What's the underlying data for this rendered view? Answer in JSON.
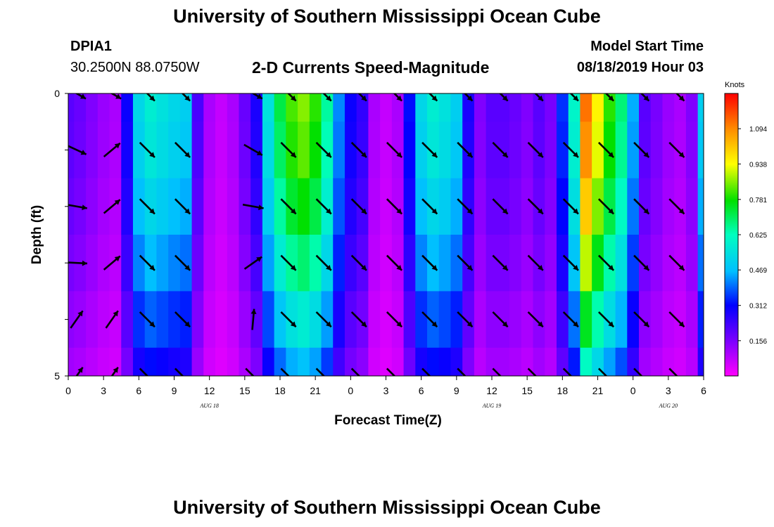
{
  "header": {
    "title_top": "University of Southern Mississippi Ocean Cube",
    "title_bottom": "University of Southern Mississippi Ocean Cube",
    "station": "DPIA1",
    "coords": "30.2500N 88.0750W",
    "subtitle": "2-D Currents Speed-Magnitude",
    "start_label": "Model Start Time",
    "start_value": "08/18/2019 Hour 03"
  },
  "chart_data": {
    "type": "heatmap",
    "title": "2-D Currents Speed-Magnitude",
    "xlabel": "Forecast Time(Z)",
    "ylabel": "Depth (ft)",
    "xlim": [
      0,
      54
    ],
    "ylim": [
      0,
      5
    ],
    "x_tick_labels": [
      "0",
      "3",
      "6",
      "9",
      "12",
      "15",
      "18",
      "21",
      "0",
      "3",
      "6",
      "9",
      "12",
      "15",
      "18",
      "21",
      "0",
      "3",
      "6"
    ],
    "y_tick_labels": [
      "0",
      "5"
    ],
    "day_labels": [
      {
        "text": "AUG  18",
        "hour": 12
      },
      {
        "text": "AUG  19",
        "hour": 36
      },
      {
        "text": "AUG  20",
        "hour": 51
      }
    ],
    "colorbar": {
      "label": "Knots",
      "min": 0,
      "max": 1.25,
      "ticks": [
        "0.156",
        "0.312",
        "0.469",
        "0.625",
        "0.781",
        "0.938",
        "1.094"
      ]
    },
    "depth_layers": [
      0,
      1,
      2,
      3,
      4,
      5
    ],
    "speed_by_hour": [
      0.2,
      0.18,
      0.15,
      0.12,
      0.1,
      0.3,
      0.52,
      0.58,
      0.55,
      0.52,
      0.5,
      0.22,
      0.1,
      0.07,
      0.1,
      0.18,
      0.28,
      0.55,
      0.72,
      0.82,
      0.86,
      0.8,
      0.65,
      0.42,
      0.3,
      0.25,
      0.1,
      0.07,
      0.1,
      0.32,
      0.52,
      0.58,
      0.55,
      0.5,
      0.28,
      0.15,
      0.2,
      0.2,
      0.18,
      0.15,
      0.2,
      0.16,
      0.35,
      0.6,
      1.12,
      0.95,
      0.8,
      0.68,
      0.45,
      0.2,
      0.16,
      0.12,
      0.1,
      0.15,
      0.5
    ],
    "depth_factors": [
      1.0,
      0.97,
      0.9,
      0.8,
      0.67,
      0.55
    ],
    "vectors": {
      "hours": [
        0,
        3,
        6,
        9,
        15,
        18,
        21,
        24,
        27,
        30,
        33,
        36,
        39,
        42,
        45,
        48,
        51
      ],
      "depths": [
        0,
        1,
        2,
        3,
        4,
        5
      ],
      "angles_deg": [
        [
          -30,
          -30,
          -45,
          -45,
          -30,
          -45,
          -45,
          -45,
          -45,
          -45,
          -45,
          -45,
          -45,
          -45,
          -45,
          -45,
          -45
        ],
        [
          -25,
          40,
          -45,
          -45,
          -30,
          -45,
          -45,
          -45,
          -45,
          -45,
          -45,
          -45,
          -45,
          -45,
          -45,
          -45,
          -45
        ],
        [
          -10,
          40,
          -45,
          -45,
          -10,
          -45,
          -45,
          -45,
          -45,
          -45,
          -45,
          -45,
          -45,
          -45,
          -45,
          -45,
          -45
        ],
        [
          -3,
          40,
          -45,
          -45,
          35,
          -45,
          -45,
          -45,
          -45,
          -45,
          -45,
          -45,
          -45,
          -45,
          -45,
          -45,
          -45
        ],
        [
          55,
          55,
          -45,
          -45,
          85,
          -45,
          -45,
          -45,
          -45,
          -45,
          -45,
          -45,
          -45,
          -45,
          -45,
          -45,
          -45
        ],
        [
          55,
          55,
          -45,
          -45,
          -45,
          -45,
          -45,
          -45,
          -45,
          -45,
          -45,
          -45,
          -45,
          -45,
          -45,
          -45,
          -45
        ]
      ]
    }
  }
}
